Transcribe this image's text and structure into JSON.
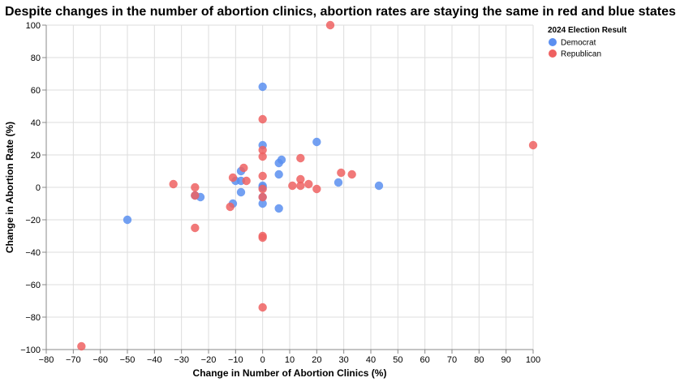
{
  "chart_data": {
    "type": "scatter",
    "title": "Despite changes in the number of abortion clinics, abortion rates are staying the same in red and blue states",
    "xlabel": "Change in Number of Abortion Clinics (%)",
    "ylabel": "Change in Abortion Rate (%)",
    "xlim": [
      -80,
      100
    ],
    "ylim": [
      -100,
      100
    ],
    "x_ticks": [
      -80,
      -70,
      -60,
      -50,
      -40,
      -30,
      -20,
      -10,
      0,
      10,
      20,
      30,
      40,
      50,
      60,
      70,
      80,
      90,
      100
    ],
    "y_ticks": [
      -100,
      -80,
      -60,
      -40,
      -20,
      0,
      20,
      40,
      60,
      80,
      100
    ],
    "grid": true,
    "legend": {
      "title": "2024 Election Result",
      "position": "top-right"
    },
    "series": [
      {
        "name": "Democrat",
        "color": "#5b8ff0",
        "points": [
          {
            "x": 0,
            "y": 62
          },
          {
            "x": 0,
            "y": 26
          },
          {
            "x": 20,
            "y": 28
          },
          {
            "x": 7,
            "y": 17
          },
          {
            "x": 6,
            "y": 15
          },
          {
            "x": 6,
            "y": 8
          },
          {
            "x": -8,
            "y": 10
          },
          {
            "x": -10,
            "y": 4
          },
          {
            "x": -8,
            "y": 4
          },
          {
            "x": 0,
            "y": 1
          },
          {
            "x": 0,
            "y": 0
          },
          {
            "x": -8,
            "y": -3
          },
          {
            "x": -23,
            "y": -6
          },
          {
            "x": -25,
            "y": -5
          },
          {
            "x": 0,
            "y": -6
          },
          {
            "x": -11,
            "y": -10
          },
          {
            "x": 0,
            "y": -10
          },
          {
            "x": 6,
            "y": -13
          },
          {
            "x": -50,
            "y": -20
          },
          {
            "x": 28,
            "y": 3
          },
          {
            "x": 43,
            "y": 1
          }
        ]
      },
      {
        "name": "Republican",
        "color": "#ef6161",
        "points": [
          {
            "x": 25,
            "y": 100
          },
          {
            "x": 0,
            "y": 42
          },
          {
            "x": 100,
            "y": 26
          },
          {
            "x": 0,
            "y": 23
          },
          {
            "x": 0,
            "y": 19
          },
          {
            "x": 14,
            "y": 18
          },
          {
            "x": -7,
            "y": 12
          },
          {
            "x": 29,
            "y": 9
          },
          {
            "x": 33,
            "y": 8
          },
          {
            "x": 0,
            "y": 7
          },
          {
            "x": -11,
            "y": 6
          },
          {
            "x": 14,
            "y": 5
          },
          {
            "x": -6,
            "y": 4
          },
          {
            "x": -33,
            "y": 2
          },
          {
            "x": 11,
            "y": 1
          },
          {
            "x": 14,
            "y": 1
          },
          {
            "x": 17,
            "y": 2
          },
          {
            "x": 20,
            "y": -1
          },
          {
            "x": 0,
            "y": -1
          },
          {
            "x": -25,
            "y": 0
          },
          {
            "x": -25,
            "y": -5
          },
          {
            "x": 0,
            "y": -6
          },
          {
            "x": -12,
            "y": -12
          },
          {
            "x": -25,
            "y": -25
          },
          {
            "x": 0,
            "y": -30
          },
          {
            "x": 0,
            "y": -31
          },
          {
            "x": 0,
            "y": -74
          },
          {
            "x": -67,
            "y": -98
          }
        ]
      }
    ]
  }
}
